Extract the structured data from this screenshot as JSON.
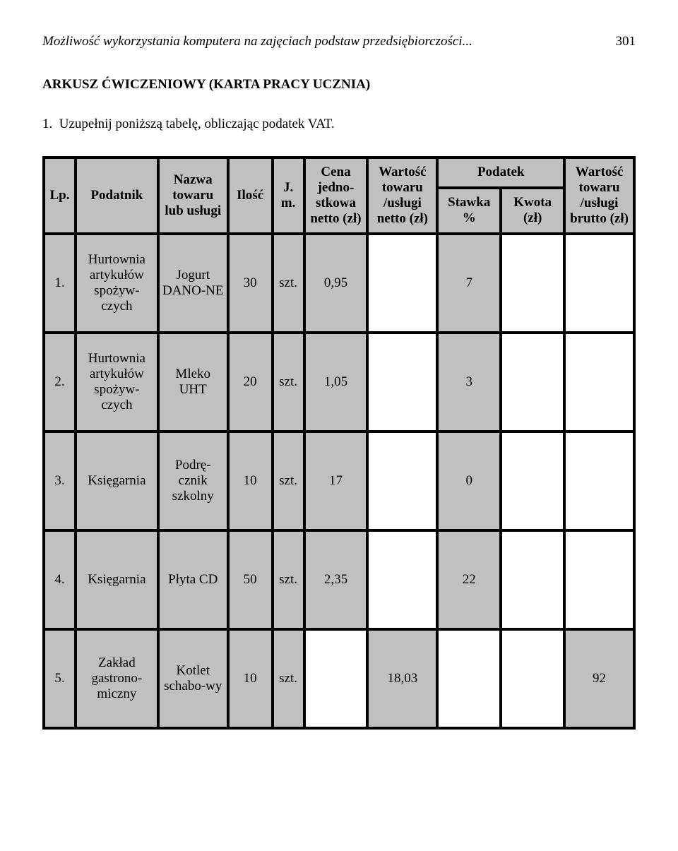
{
  "running_title": "Możliwość wykorzystania komputera na zajęciach podstaw przedsiębiorczości...",
  "page_number": "301",
  "section_heading": "ARKUSZ ĆWICZENIOWY (KARTA PRACY UCZNIA)",
  "instruction": "1.  Uzupełnij poniższą tabelę, obliczając podatek VAT.",
  "table": {
    "columns": {
      "lp": "Lp.",
      "podatnik": "Podatnik",
      "nazwa": "Nazwa towaru lub usługi",
      "ilosc": "Ilość",
      "jm": "J. m.",
      "cena_netto": "Cena jedno-stkowa netto (zł)",
      "wartosc_netto": "Wartość towaru /usługi netto (zł)",
      "podatek": "Podatek",
      "stawka": "Stawka %",
      "kwota": "Kwota (zł)",
      "wartosc_brutto": "Wartość towaru /usługi brutto (zł)"
    },
    "rows": [
      {
        "lp": "1.",
        "podatnik": "Hurtownia artykułów spożyw-czych",
        "nazwa": "Jogurt DANO-NE",
        "ilosc": "30",
        "jm": "szt.",
        "cena_netto": "0,95",
        "wartosc_netto": "",
        "stawka": "7",
        "kwota": "",
        "wartosc_brutto": ""
      },
      {
        "lp": "2.",
        "podatnik": "Hurtownia artykułów spożyw-czych",
        "nazwa": "Mleko UHT",
        "ilosc": "20",
        "jm": "szt.",
        "cena_netto": "1,05",
        "wartosc_netto": "",
        "stawka": "3",
        "kwota": "",
        "wartosc_brutto": ""
      },
      {
        "lp": "3.",
        "podatnik": "Księgarnia",
        "nazwa": "Podrę-cznik szkolny",
        "ilosc": "10",
        "jm": "szt.",
        "cena_netto": "17",
        "wartosc_netto": "",
        "stawka": "0",
        "kwota": "",
        "wartosc_brutto": ""
      },
      {
        "lp": "4.",
        "podatnik": "Księgarnia",
        "nazwa": "Płyta CD",
        "ilosc": "50",
        "jm": "szt.",
        "cena_netto": "2,35",
        "wartosc_netto": "",
        "stawka": "22",
        "kwota": "",
        "wartosc_brutto": ""
      },
      {
        "lp": "5.",
        "podatnik": "Zakład gastrono-miczny",
        "nazwa": "Kotlet schabo-wy",
        "ilosc": "10",
        "jm": "szt.",
        "cena_netto": "",
        "wartosc_netto": "18,03",
        "stawka": "",
        "kwota": "",
        "wartosc_brutto": "92"
      }
    ],
    "colors": {
      "header_bg": "#c0c0c0",
      "gray_cell": "#c0c0c0",
      "white_cell": "#ffffff",
      "border": "#000000"
    },
    "fonts": {
      "body_family": "Times New Roman",
      "body_size_pt": 14
    }
  }
}
